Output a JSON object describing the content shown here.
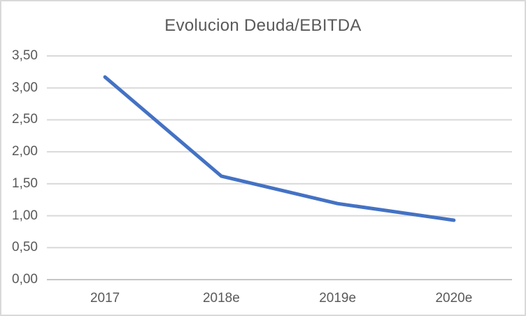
{
  "frame": {
    "background": "#FFFFFF",
    "border_color": "#D9D9D9"
  },
  "chart_data": {
    "type": "line",
    "title": "Evolucion Deuda/EBITDA",
    "categories": [
      "2017",
      "2018e",
      "2019e",
      "2020e"
    ],
    "values": [
      3.17,
      1.62,
      1.19,
      0.93
    ],
    "xlabel": "",
    "ylabel": "",
    "ylim": [
      0,
      3.5
    ],
    "ytick_step": 0.5,
    "ytick_labels": [
      "0,00",
      "0,50",
      "1,00",
      "1,50",
      "2,00",
      "2,50",
      "3,00",
      "3,50"
    ],
    "grid": true,
    "legend": "none",
    "colors": {
      "line": "#4472C4",
      "gridline": "#D9D9D9",
      "axis_line": "#C6C6C6",
      "text": "#595959"
    }
  }
}
